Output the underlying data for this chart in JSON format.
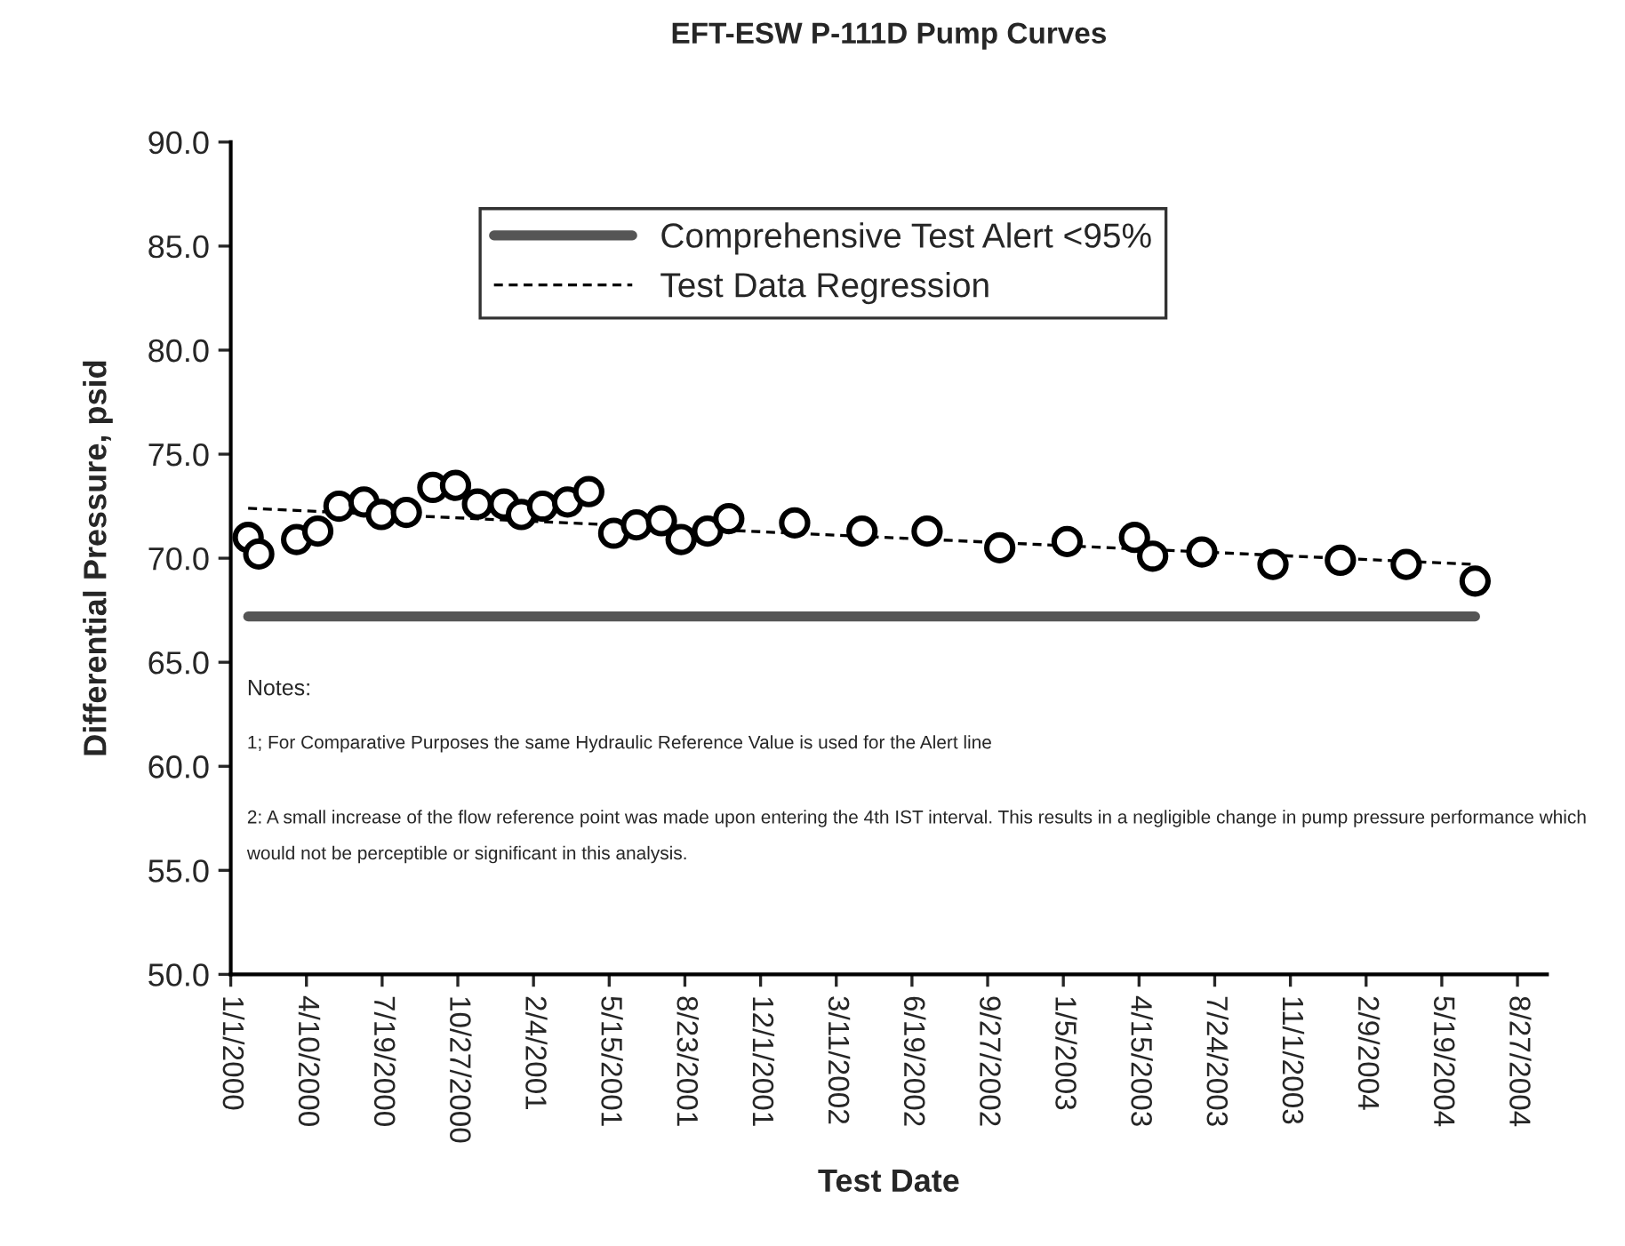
{
  "chart_data": {
    "type": "scatter",
    "title": "EFT-ESW P-111D Pump Curves",
    "xlabel": "Test Date",
    "ylabel": "Differential Pressure, psid",
    "xlim": [
      "2000-01-01",
      "2004-10-05"
    ],
    "xticks": [
      {
        "value": "2000-01-01",
        "label": "1/1/2000"
      },
      {
        "value": "2000-04-10",
        "label": "4/10/2000"
      },
      {
        "value": "2000-07-19",
        "label": "7/19/2000"
      },
      {
        "value": "2000-10-27",
        "label": "10/27/2000"
      },
      {
        "value": "2001-02-04",
        "label": "2/4/2001"
      },
      {
        "value": "2001-05-15",
        "label": "5/15/2001"
      },
      {
        "value": "2001-08-23",
        "label": "8/23/2001"
      },
      {
        "value": "2001-12-01",
        "label": "12/1/2001"
      },
      {
        "value": "2002-03-11",
        "label": "3/11/2002"
      },
      {
        "value": "2002-06-19",
        "label": "6/19/2002"
      },
      {
        "value": "2002-09-27",
        "label": "9/27/2002"
      },
      {
        "value": "2003-01-05",
        "label": "1/5/2003"
      },
      {
        "value": "2003-04-15",
        "label": "4/15/2003"
      },
      {
        "value": "2003-07-24",
        "label": "7/24/2003"
      },
      {
        "value": "2003-11-01",
        "label": "11/1/2003"
      },
      {
        "value": "2004-02-09",
        "label": "2/9/2004"
      },
      {
        "value": "2004-05-19",
        "label": "5/19/2004"
      },
      {
        "value": "2004-08-27",
        "label": "8/27/2004"
      }
    ],
    "ylim": [
      50,
      90
    ],
    "yticks": [
      {
        "value": 50,
        "label": "50.0"
      },
      {
        "value": 55,
        "label": "55.0"
      },
      {
        "value": 60,
        "label": "60.0"
      },
      {
        "value": 65,
        "label": "65.0"
      },
      {
        "value": 70,
        "label": "70.0"
      },
      {
        "value": 75,
        "label": "75.0"
      },
      {
        "value": 80,
        "label": "80.0"
      },
      {
        "value": 85,
        "label": "85.0"
      },
      {
        "value": 90,
        "label": "90.0"
      }
    ],
    "series": [
      {
        "name": "Comprehensive Test Alert <95%",
        "type": "line",
        "color": "#555555",
        "line_style": "solid",
        "marker": "none",
        "x": [
          "2000-01-24",
          "2004-07-02"
        ],
        "values": [
          67.2,
          67.2
        ]
      },
      {
        "name": "Test Data Regression",
        "type": "line",
        "color": "#000000",
        "line_style": "dashed",
        "marker": "none",
        "x": [
          "2000-01-24",
          "2004-07-02"
        ],
        "values": [
          72.4,
          69.7
        ]
      },
      {
        "color": "#000000",
        "marker": "circle",
        "x": [
          "2000-01-24",
          "2000-02-07",
          "2000-03-28",
          "2000-04-25",
          "2000-05-23",
          "2000-06-25",
          "2000-07-18",
          "2000-08-20",
          "2000-09-24",
          "2000-10-24",
          "2000-11-22",
          "2000-12-27",
          "2001-01-19",
          "2001-02-16",
          "2001-03-21",
          "2001-04-18",
          "2001-05-21",
          "2001-06-20",
          "2001-07-23",
          "2001-08-18",
          "2001-09-22",
          "2001-10-20",
          "2002-01-15",
          "2002-04-14",
          "2002-07-09",
          "2002-10-13",
          "2003-01-10",
          "2003-04-09",
          "2003-05-03",
          "2003-07-07",
          "2003-10-09",
          "2004-01-06",
          "2004-04-02",
          "2004-07-02"
        ],
        "values": [
          71.0,
          70.2,
          70.9,
          71.3,
          72.5,
          72.7,
          72.1,
          72.2,
          73.4,
          73.5,
          72.6,
          72.6,
          72.1,
          72.5,
          72.7,
          73.2,
          71.2,
          71.6,
          71.8,
          70.9,
          71.3,
          71.9,
          71.7,
          71.3,
          71.3,
          70.5,
          70.8,
          71.0,
          70.1,
          70.3,
          69.7,
          69.9,
          69.7,
          68.9
        ]
      }
    ],
    "legend": "top",
    "grid": false,
    "annotations": [
      "Notes:",
      "1; For Comparative Purposes the same Hydraulic Reference Value is used for the Alert line",
      "2: A small increase of the flow reference point was made upon entering the 4th IST interval. This results in a negligible change in pump pressure performance which would not be perceptible or significant in this analysis."
    ]
  }
}
